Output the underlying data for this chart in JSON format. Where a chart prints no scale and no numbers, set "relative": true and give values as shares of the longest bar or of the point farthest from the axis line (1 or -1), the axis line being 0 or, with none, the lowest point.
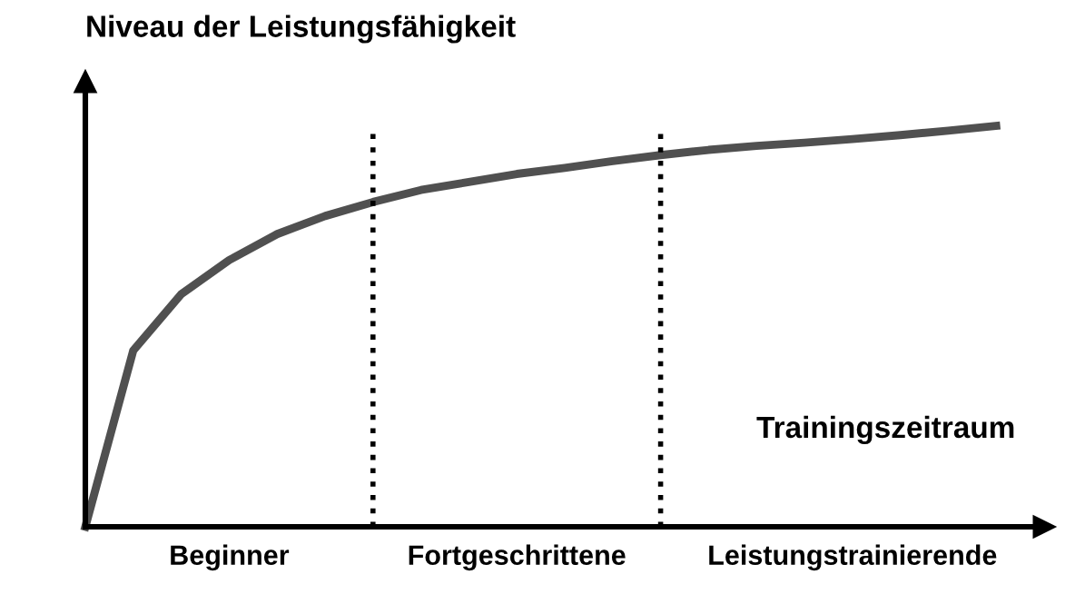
{
  "chart_data": {
    "type": "line",
    "relative": true,
    "ylabel": "Niveau der Leistungsfähigkeit",
    "xlabel": "Trainingszeitraum",
    "categories": [
      null,
      null,
      null,
      null,
      null,
      null,
      null,
      null,
      null,
      null,
      null,
      null,
      null,
      null,
      null,
      null,
      null,
      null,
      null,
      null
    ],
    "series": [
      {
        "color": "#505050",
        "values": [
          0,
          0.44,
          0.58,
          0.665,
          0.73,
          0.775,
          0.81,
          0.84,
          0.86,
          0.88,
          0.895,
          0.912,
          0.927,
          0.94,
          0.95,
          0.958,
          0.967,
          0.977,
          0.988,
          1
        ]
      }
    ],
    "annotations": [
      "Beginner",
      "Fortgeschrittene",
      "Leistungstrainierende"
    ],
    "tick_labels": false,
    "marker": "none",
    "line_style": "solid"
  }
}
